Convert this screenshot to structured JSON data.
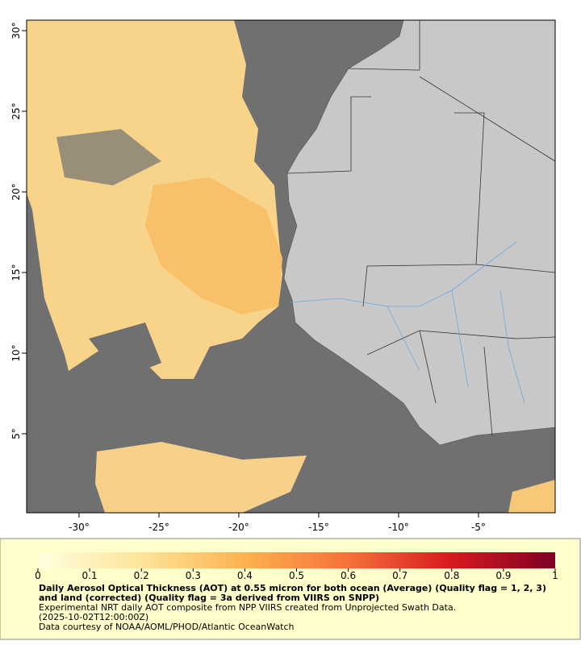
{
  "map": {
    "xlim": [
      -33.28,
      -0.2
    ],
    "ylim": [
      0.1,
      30.65
    ],
    "xticks": [
      {
        "value": -30,
        "label": "-30°"
      },
      {
        "value": -25,
        "label": "-25°"
      },
      {
        "value": -20,
        "label": "-20°"
      },
      {
        "value": -15,
        "label": "-15°"
      },
      {
        "value": -10,
        "label": "-10°"
      },
      {
        "value": -5,
        "label": "-5°"
      }
    ],
    "yticks": [
      {
        "value": 30,
        "label": "30°"
      },
      {
        "value": 25,
        "label": "25°"
      },
      {
        "value": 20,
        "label": "20°"
      },
      {
        "value": 15,
        "label": "15°"
      },
      {
        "value": 10,
        "label": "10°"
      },
      {
        "value": 5,
        "label": "5°"
      }
    ]
  },
  "colorbar": {
    "lim": [
      0,
      1
    ],
    "ticks": [
      0,
      0.1,
      0.2,
      0.3,
      0.4,
      0.5,
      0.6,
      0.7,
      0.8,
      0.9,
      1
    ]
  },
  "caption": {
    "title": "Daily Aerosol Optical Thickness (AOT) at 0.55 micron for both ocean (Average) (Quality flag = 1, 2, 3) and land (corrected) (Quality flag = 3a derived from VIIRS on SNPP)",
    "lines": [
      "Experimental NRT daily AOT composite from NPP VIIRS created from Unprojected Swath Data.",
      "(2025-10-02T12:00:00Z)",
      "Data courtesy of NOAA/AOML/PHOD/Atlantic OceanWatch"
    ]
  }
}
